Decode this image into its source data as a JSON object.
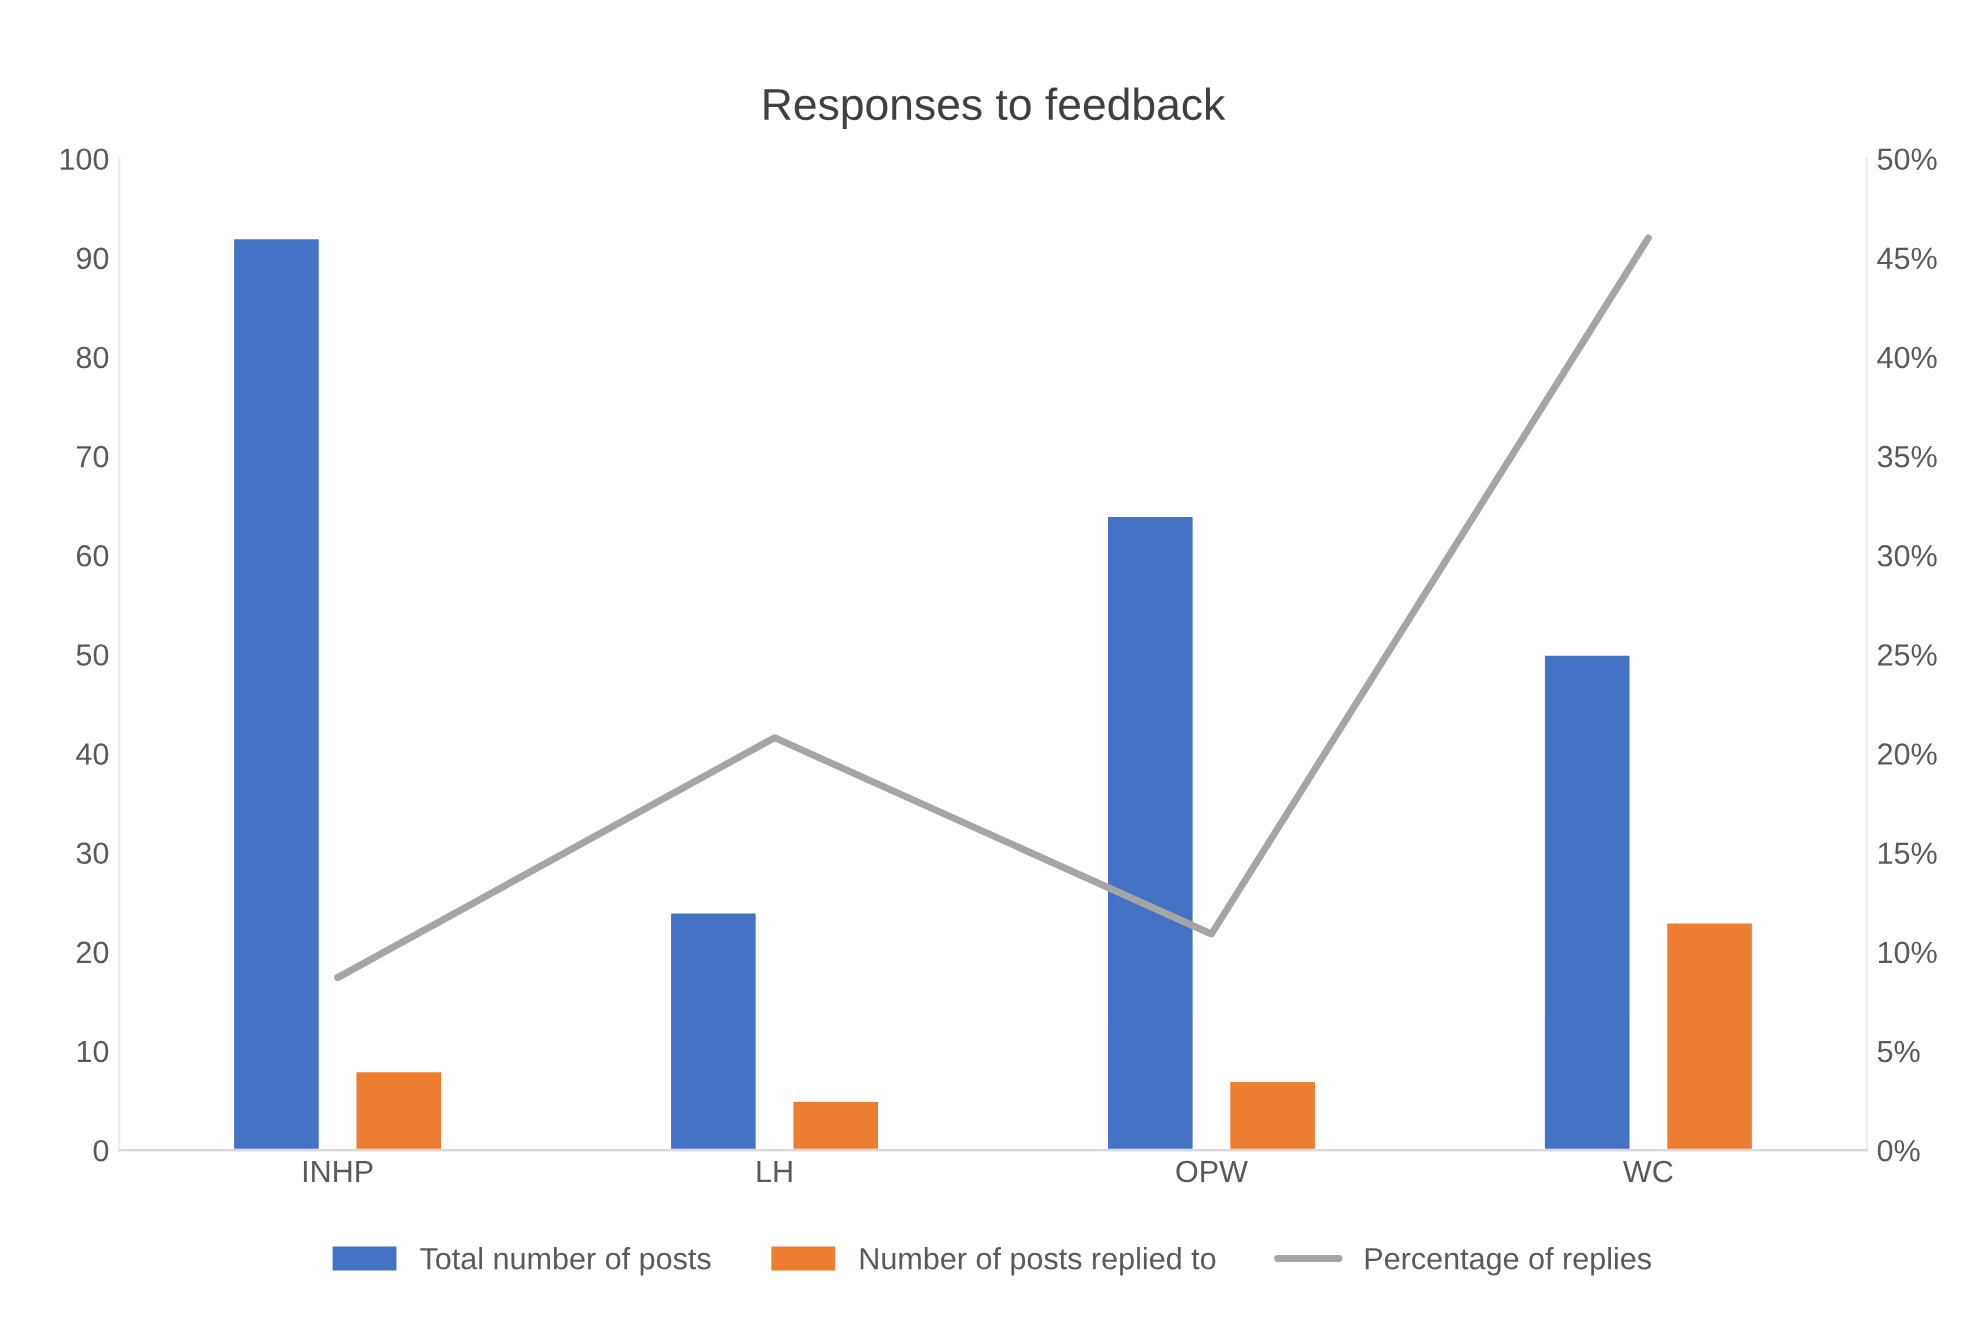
{
  "chart_data": {
    "type": "bar",
    "title": "Responses to feedback",
    "categories": [
      "INHP",
      "LH",
      "OPW",
      "WC"
    ],
    "series": [
      {
        "name": "Total number of posts",
        "color": "#4472c4",
        "values": [
          92,
          24,
          64,
          50
        ]
      },
      {
        "name": "Number of posts replied to",
        "color": "#ed7d31",
        "values": [
          8,
          5,
          7,
          23
        ]
      },
      {
        "name": "Percentage of replies",
        "color": "#a5a5a5",
        "type": "line",
        "axis": "y2",
        "values": [
          8.7,
          20.8,
          10.9,
          46
        ]
      }
    ],
    "ylim": [
      0,
      100
    ],
    "yticks": [
      0,
      10,
      20,
      30,
      40,
      50,
      60,
      70,
      80,
      90,
      100
    ],
    "y2lim": [
      0,
      50
    ],
    "y2ticks": [
      {
        "value": 0,
        "label": "0%"
      },
      {
        "value": 5,
        "label": "5%"
      },
      {
        "value": 10,
        "label": "10%"
      },
      {
        "value": 15,
        "label": "15%"
      },
      {
        "value": 20,
        "label": "20%"
      },
      {
        "value": 25,
        "label": "25%"
      },
      {
        "value": 30,
        "label": "30%"
      },
      {
        "value": 35,
        "label": "35%"
      },
      {
        "value": 40,
        "label": "40%"
      },
      {
        "value": 45,
        "label": "45%"
      },
      {
        "value": 50,
        "label": "50%"
      }
    ],
    "legend": "bottom",
    "grid": false,
    "marker": "none",
    "line_style": "solid"
  }
}
